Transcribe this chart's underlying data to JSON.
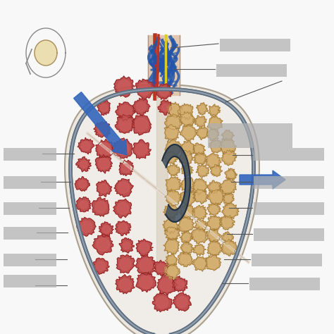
{
  "bg_color": "#f8f8f8",
  "arrow_color": "#3366bb",
  "vessel_blue_color": "#2255aa",
  "vessel_red_color": "#bb3322",
  "vessel_yellow_color": "#ddcc20",
  "tubule_red_color": "#b84040",
  "tubule_red_dark": "#8B2020",
  "tubule_tan_color": "#c8a060",
  "tubule_tan_dark": "#a07830",
  "capsule_color": "#607080",
  "white_fill": "#f0ece8",
  "septum_color": "#e8ddd0",
  "epid_color": "#405060",
  "label_gray": "#b0b0b0",
  "inset_color": "#888888"
}
